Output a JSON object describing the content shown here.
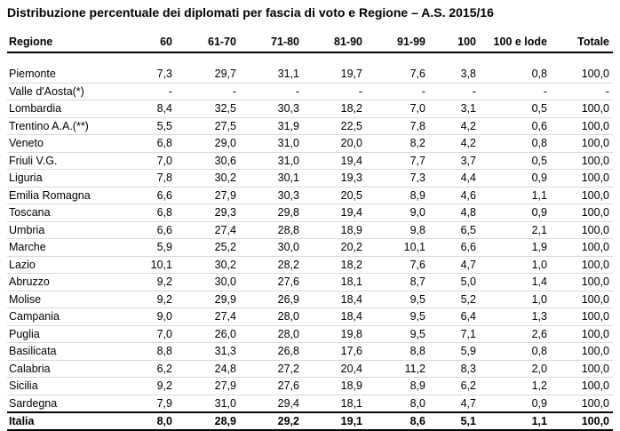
{
  "title": "Distribuzione percentuale dei diplomati per fascia di voto e Regione – A.S. 2015/16",
  "columns": [
    "Regione",
    "60",
    "61-70",
    "71-80",
    "81-90",
    "91-99",
    "100",
    "100 e lode",
    "Totale"
  ],
  "rows": [
    [
      "Piemonte",
      "7,3",
      "29,7",
      "31,1",
      "19,7",
      "7,6",
      "3,8",
      "0,8",
      "100,0"
    ],
    [
      "Valle d'Aosta(*)",
      "-",
      "-",
      "-",
      "-",
      "-",
      "-",
      "-",
      "-"
    ],
    [
      "Lombardia",
      "8,4",
      "32,5",
      "30,3",
      "18,2",
      "7,0",
      "3,1",
      "0,5",
      "100,0"
    ],
    [
      "Trentino A.A.(**)",
      "5,5",
      "27,5",
      "31,9",
      "22,5",
      "7,8",
      "4,2",
      "0,6",
      "100,0"
    ],
    [
      "Veneto",
      "6,8",
      "29,0",
      "31,0",
      "20,0",
      "8,2",
      "4,2",
      "0,8",
      "100,0"
    ],
    [
      "Friuli V.G.",
      "7,0",
      "30,6",
      "31,0",
      "19,4",
      "7,7",
      "3,7",
      "0,5",
      "100,0"
    ],
    [
      "Liguria",
      "7,8",
      "30,2",
      "30,1",
      "19,3",
      "7,3",
      "4,4",
      "0,9",
      "100,0"
    ],
    [
      "Emilia Romagna",
      "6,6",
      "27,9",
      "30,3",
      "20,5",
      "8,9",
      "4,6",
      "1,1",
      "100,0"
    ],
    [
      "Toscana",
      "6,8",
      "29,3",
      "29,8",
      "19,4",
      "9,0",
      "4,8",
      "0,9",
      "100,0"
    ],
    [
      "Umbria",
      "6,6",
      "27,4",
      "28,8",
      "18,9",
      "9,8",
      "6,5",
      "2,1",
      "100,0"
    ],
    [
      "Marche",
      "5,9",
      "25,2",
      "30,0",
      "20,2",
      "10,1",
      "6,6",
      "1,9",
      "100,0"
    ],
    [
      "Lazio",
      "10,1",
      "30,2",
      "28,2",
      "18,2",
      "7,6",
      "4,7",
      "1,0",
      "100,0"
    ],
    [
      "Abruzzo",
      "9,2",
      "30,0",
      "27,6",
      "18,1",
      "8,7",
      "5,0",
      "1,4",
      "100,0"
    ],
    [
      "Molise",
      "9,2",
      "29,9",
      "26,9",
      "18,4",
      "9,5",
      "5,2",
      "1,0",
      "100,0"
    ],
    [
      "Campania",
      "9,0",
      "27,4",
      "28,0",
      "18,4",
      "9,5",
      "6,4",
      "1,3",
      "100,0"
    ],
    [
      "Puglia",
      "7,0",
      "26,0",
      "28,0",
      "19,8",
      "9,5",
      "7,1",
      "2,6",
      "100,0"
    ],
    [
      "Basilicata",
      "8,8",
      "31,3",
      "26,8",
      "17,6",
      "8,8",
      "5,9",
      "0,8",
      "100,0"
    ],
    [
      "Calabria",
      "6,2",
      "24,8",
      "27,2",
      "20,4",
      "11,2",
      "8,3",
      "2,0",
      "100,0"
    ],
    [
      "Sicilia",
      "9,2",
      "27,9",
      "27,6",
      "18,9",
      "8,9",
      "6,2",
      "1,2",
      "100,0"
    ],
    [
      "Sardegna",
      "7,9",
      "31,0",
      "29,4",
      "18,1",
      "8,0",
      "4,7",
      "0,9",
      "100,0"
    ]
  ],
  "total": [
    "Italia",
    "8,0",
    "28,9",
    "29,2",
    "19,1",
    "8,6",
    "5,1",
    "1,1",
    "100,0"
  ]
}
